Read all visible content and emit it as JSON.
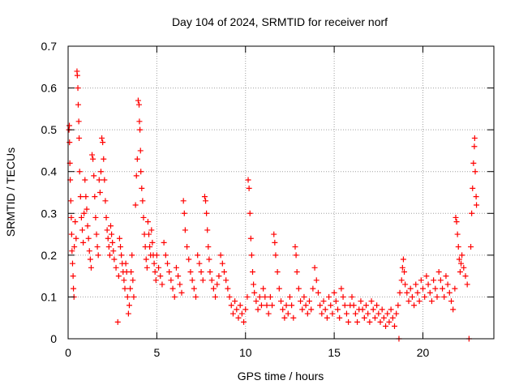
{
  "chart_data": {
    "type": "scatter",
    "title": "Day 104 of 2024, SRMTID for receiver norf",
    "xlabel": "GPS time / hours",
    "ylabel": "SRMTID / TECUs",
    "xlim": [
      0,
      24
    ],
    "ylim": [
      0,
      0.7
    ],
    "xticks": [
      0,
      5,
      10,
      15,
      20
    ],
    "yticks": [
      0,
      0.1,
      0.2,
      0.3,
      0.4,
      0.5,
      0.6,
      0.7
    ],
    "xtick_labels": [
      "0",
      "5",
      "10",
      "15",
      "20"
    ],
    "ytick_labels": [
      "0",
      "0.1",
      "0.2",
      "0.3",
      "0.4",
      "0.5",
      "0.6",
      "0.7"
    ],
    "grid": true,
    "marker": "+",
    "color": "#ff0000",
    "series": [
      {
        "name": "SRMTID",
        "points": [
          [
            0.05,
            0.5
          ],
          [
            0.07,
            0.51
          ],
          [
            0.08,
            0.47
          ],
          [
            0.1,
            0.42
          ],
          [
            0.12,
            0.38
          ],
          [
            0.15,
            0.33
          ],
          [
            0.18,
            0.29
          ],
          [
            0.2,
            0.25
          ],
          [
            0.22,
            0.21
          ],
          [
            0.25,
            0.18
          ],
          [
            0.28,
            0.15
          ],
          [
            0.3,
            0.12
          ],
          [
            0.33,
            0.1
          ],
          [
            0.35,
            0.22
          ],
          [
            0.4,
            0.28
          ],
          [
            0.45,
            0.24
          ],
          [
            0.5,
            0.64
          ],
          [
            0.52,
            0.63
          ],
          [
            0.55,
            0.6
          ],
          [
            0.57,
            0.56
          ],
          [
            0.6,
            0.52
          ],
          [
            0.62,
            0.48
          ],
          [
            0.65,
            0.4
          ],
          [
            0.7,
            0.34
          ],
          [
            0.75,
            0.29
          ],
          [
            0.8,
            0.26
          ],
          [
            0.85,
            0.23
          ],
          [
            0.9,
            0.3
          ],
          [
            0.95,
            0.38
          ],
          [
            1.0,
            0.34
          ],
          [
            1.05,
            0.31
          ],
          [
            1.1,
            0.27
          ],
          [
            1.15,
            0.24
          ],
          [
            1.2,
            0.21
          ],
          [
            1.25,
            0.19
          ],
          [
            1.3,
            0.17
          ],
          [
            1.35,
            0.44
          ],
          [
            1.4,
            0.43
          ],
          [
            1.45,
            0.39
          ],
          [
            1.5,
            0.34
          ],
          [
            1.55,
            0.29
          ],
          [
            1.6,
            0.25
          ],
          [
            1.65,
            0.22
          ],
          [
            1.7,
            0.2
          ],
          [
            1.75,
            0.38
          ],
          [
            1.8,
            0.35
          ],
          [
            1.85,
            0.4
          ],
          [
            1.9,
            0.48
          ],
          [
            1.95,
            0.47
          ],
          [
            2.0,
            0.43
          ],
          [
            2.05,
            0.38
          ],
          [
            2.1,
            0.33
          ],
          [
            2.15,
            0.29
          ],
          [
            2.2,
            0.26
          ],
          [
            2.25,
            0.24
          ],
          [
            2.3,
            0.22
          ],
          [
            2.35,
            0.2
          ],
          [
            2.4,
            0.27
          ],
          [
            2.45,
            0.25
          ],
          [
            2.5,
            0.23
          ],
          [
            2.55,
            0.21
          ],
          [
            2.6,
            0.19
          ],
          [
            2.7,
            0.17
          ],
          [
            2.8,
            0.04
          ],
          [
            2.85,
            0.15
          ],
          [
            2.9,
            0.24
          ],
          [
            2.95,
            0.22
          ],
          [
            3.0,
            0.2
          ],
          [
            3.05,
            0.18
          ],
          [
            3.1,
            0.16
          ],
          [
            3.15,
            0.14
          ],
          [
            3.2,
            0.12
          ],
          [
            3.25,
            0.18
          ],
          [
            3.3,
            0.16
          ],
          [
            3.35,
            0.1
          ],
          [
            3.4,
            0.06
          ],
          [
            3.45,
            0.08
          ],
          [
            3.5,
            0.12
          ],
          [
            3.55,
            0.16
          ],
          [
            3.6,
            0.2
          ],
          [
            3.65,
            0.14
          ],
          [
            3.7,
            0.1
          ],
          [
            3.8,
            0.32
          ],
          [
            3.85,
            0.39
          ],
          [
            3.9,
            0.43
          ],
          [
            3.95,
            0.57
          ],
          [
            4.0,
            0.56
          ],
          [
            4.02,
            0.52
          ],
          [
            4.05,
            0.5
          ],
          [
            4.08,
            0.45
          ],
          [
            4.1,
            0.4
          ],
          [
            4.15,
            0.36
          ],
          [
            4.2,
            0.33
          ],
          [
            4.25,
            0.29
          ],
          [
            4.3,
            0.25
          ],
          [
            4.35,
            0.22
          ],
          [
            4.4,
            0.19
          ],
          [
            4.45,
            0.17
          ],
          [
            4.5,
            0.28
          ],
          [
            4.55,
            0.25
          ],
          [
            4.6,
            0.22
          ],
          [
            4.65,
            0.2
          ],
          [
            4.7,
            0.26
          ],
          [
            4.75,
            0.23
          ],
          [
            4.8,
            0.2
          ],
          [
            4.85,
            0.18
          ],
          [
            4.9,
            0.16
          ],
          [
            4.95,
            0.14
          ],
          [
            5.0,
            0.2
          ],
          [
            5.1,
            0.17
          ],
          [
            5.2,
            0.15
          ],
          [
            5.3,
            0.13
          ],
          [
            5.4,
            0.23
          ],
          [
            5.5,
            0.2
          ],
          [
            5.6,
            0.18
          ],
          [
            5.7,
            0.16
          ],
          [
            5.8,
            0.14
          ],
          [
            5.9,
            0.12
          ],
          [
            6.0,
            0.1
          ],
          [
            6.1,
            0.17
          ],
          [
            6.2,
            0.15
          ],
          [
            6.3,
            0.13
          ],
          [
            6.4,
            0.11
          ],
          [
            6.5,
            0.33
          ],
          [
            6.55,
            0.3
          ],
          [
            6.6,
            0.26
          ],
          [
            6.7,
            0.22
          ],
          [
            6.8,
            0.19
          ],
          [
            6.9,
            0.16
          ],
          [
            7.0,
            0.14
          ],
          [
            7.1,
            0.12
          ],
          [
            7.2,
            0.1
          ],
          [
            7.3,
            0.2
          ],
          [
            7.4,
            0.18
          ],
          [
            7.5,
            0.16
          ],
          [
            7.6,
            0.14
          ],
          [
            7.7,
            0.34
          ],
          [
            7.75,
            0.33
          ],
          [
            7.8,
            0.3
          ],
          [
            7.85,
            0.26
          ],
          [
            7.9,
            0.22
          ],
          [
            7.95,
            0.19
          ],
          [
            8.0,
            0.16
          ],
          [
            8.1,
            0.14
          ],
          [
            8.2,
            0.12
          ],
          [
            8.3,
            0.1
          ],
          [
            8.4,
            0.13
          ],
          [
            8.5,
            0.15
          ],
          [
            8.6,
            0.2
          ],
          [
            8.7,
            0.18
          ],
          [
            8.8,
            0.16
          ],
          [
            8.9,
            0.14
          ],
          [
            9.0,
            0.12
          ],
          [
            9.1,
            0.1
          ],
          [
            9.2,
            0.08
          ],
          [
            9.3,
            0.06
          ],
          [
            9.4,
            0.09
          ],
          [
            9.5,
            0.07
          ],
          [
            9.6,
            0.05
          ],
          [
            9.7,
            0.08
          ],
          [
            9.8,
            0.06
          ],
          [
            9.9,
            0.04
          ],
          [
            10.0,
            0.07
          ],
          [
            10.1,
            0.1
          ],
          [
            10.15,
            0.38
          ],
          [
            10.2,
            0.36
          ],
          [
            10.25,
            0.3
          ],
          [
            10.3,
            0.24
          ],
          [
            10.35,
            0.2
          ],
          [
            10.4,
            0.16
          ],
          [
            10.45,
            0.13
          ],
          [
            10.5,
            0.11
          ],
          [
            10.6,
            0.09
          ],
          [
            10.7,
            0.07
          ],
          [
            10.8,
            0.1
          ],
          [
            10.9,
            0.08
          ],
          [
            11.0,
            0.12
          ],
          [
            11.1,
            0.1
          ],
          [
            11.2,
            0.08
          ],
          [
            11.3,
            0.06
          ],
          [
            11.4,
            0.1
          ],
          [
            11.5,
            0.08
          ],
          [
            11.6,
            0.25
          ],
          [
            11.65,
            0.23
          ],
          [
            11.7,
            0.2
          ],
          [
            11.8,
            0.16
          ],
          [
            11.9,
            0.12
          ],
          [
            12.0,
            0.09
          ],
          [
            12.1,
            0.07
          ],
          [
            12.2,
            0.05
          ],
          [
            12.3,
            0.08
          ],
          [
            12.4,
            0.06
          ],
          [
            12.5,
            0.1
          ],
          [
            12.6,
            0.08
          ],
          [
            12.7,
            0.05
          ],
          [
            12.8,
            0.22
          ],
          [
            12.85,
            0.2
          ],
          [
            12.9,
            0.16
          ],
          [
            13.0,
            0.12
          ],
          [
            13.1,
            0.09
          ],
          [
            13.2,
            0.07
          ],
          [
            13.3,
            0.1
          ],
          [
            13.4,
            0.08
          ],
          [
            13.5,
            0.06
          ],
          [
            13.6,
            0.09
          ],
          [
            13.7,
            0.07
          ],
          [
            13.8,
            0.12
          ],
          [
            13.9,
            0.17
          ],
          [
            14.0,
            0.14
          ],
          [
            14.1,
            0.11
          ],
          [
            14.2,
            0.08
          ],
          [
            14.3,
            0.06
          ],
          [
            14.4,
            0.09
          ],
          [
            14.5,
            0.07
          ],
          [
            14.6,
            0.05
          ],
          [
            14.7,
            0.1
          ],
          [
            14.8,
            0.08
          ],
          [
            14.9,
            0.06
          ],
          [
            15.0,
            0.11
          ],
          [
            15.1,
            0.09
          ],
          [
            15.2,
            0.07
          ],
          [
            15.3,
            0.05
          ],
          [
            15.4,
            0.12
          ],
          [
            15.5,
            0.1
          ],
          [
            15.6,
            0.08
          ],
          [
            15.7,
            0.06
          ],
          [
            15.8,
            0.04
          ],
          [
            15.9,
            0.08
          ],
          [
            16.0,
            0.1
          ],
          [
            16.1,
            0.08
          ],
          [
            16.2,
            0.06
          ],
          [
            16.3,
            0.04
          ],
          [
            16.4,
            0.07
          ],
          [
            16.5,
            0.09
          ],
          [
            16.6,
            0.07
          ],
          [
            16.7,
            0.05
          ],
          [
            16.8,
            0.08
          ],
          [
            16.9,
            0.06
          ],
          [
            17.0,
            0.04
          ],
          [
            17.1,
            0.09
          ],
          [
            17.2,
            0.07
          ],
          [
            17.3,
            0.05
          ],
          [
            17.4,
            0.08
          ],
          [
            17.5,
            0.06
          ],
          [
            17.6,
            0.04
          ],
          [
            17.7,
            0.07
          ],
          [
            17.8,
            0.05
          ],
          [
            17.9,
            0.03
          ],
          [
            18.0,
            0.06
          ],
          [
            18.1,
            0.04
          ],
          [
            18.2,
            0.07
          ],
          [
            18.3,
            0.05
          ],
          [
            18.4,
            0.03
          ],
          [
            18.5,
            0.06
          ],
          [
            18.6,
            0.08
          ],
          [
            18.65,
            0.0
          ],
          [
            18.7,
            0.11
          ],
          [
            18.8,
            0.14
          ],
          [
            18.85,
            0.17
          ],
          [
            18.9,
            0.19
          ],
          [
            18.95,
            0.16
          ],
          [
            19.0,
            0.13
          ],
          [
            19.1,
            0.11
          ],
          [
            19.2,
            0.09
          ],
          [
            19.3,
            0.12
          ],
          [
            19.4,
            0.1
          ],
          [
            19.5,
            0.08
          ],
          [
            19.6,
            0.13
          ],
          [
            19.7,
            0.11
          ],
          [
            19.8,
            0.09
          ],
          [
            19.9,
            0.14
          ],
          [
            20.0,
            0.12
          ],
          [
            20.1,
            0.1
          ],
          [
            20.2,
            0.15
          ],
          [
            20.3,
            0.13
          ],
          [
            20.4,
            0.11
          ],
          [
            20.5,
            0.09
          ],
          [
            20.6,
            0.14
          ],
          [
            20.7,
            0.12
          ],
          [
            20.8,
            0.1
          ],
          [
            20.9,
            0.16
          ],
          [
            21.0,
            0.14
          ],
          [
            21.1,
            0.12
          ],
          [
            21.2,
            0.1
          ],
          [
            21.3,
            0.15
          ],
          [
            21.4,
            0.13
          ],
          [
            21.5,
            0.11
          ],
          [
            21.6,
            0.09
          ],
          [
            21.7,
            0.07
          ],
          [
            21.8,
            0.12
          ],
          [
            21.85,
            0.29
          ],
          [
            21.9,
            0.28
          ],
          [
            21.95,
            0.25
          ],
          [
            22.0,
            0.22
          ],
          [
            22.05,
            0.19
          ],
          [
            22.1,
            0.16
          ],
          [
            22.15,
            0.18
          ],
          [
            22.2,
            0.2
          ],
          [
            22.3,
            0.17
          ],
          [
            22.4,
            0.15
          ],
          [
            22.5,
            0.13
          ],
          [
            22.6,
            0.0
          ],
          [
            22.7,
            0.22
          ],
          [
            22.75,
            0.3
          ],
          [
            22.8,
            0.36
          ],
          [
            22.85,
            0.42
          ],
          [
            22.9,
            0.46
          ],
          [
            22.92,
            0.48
          ],
          [
            22.95,
            0.4
          ],
          [
            23.0,
            0.34
          ],
          [
            23.02,
            0.32
          ]
        ]
      }
    ]
  }
}
